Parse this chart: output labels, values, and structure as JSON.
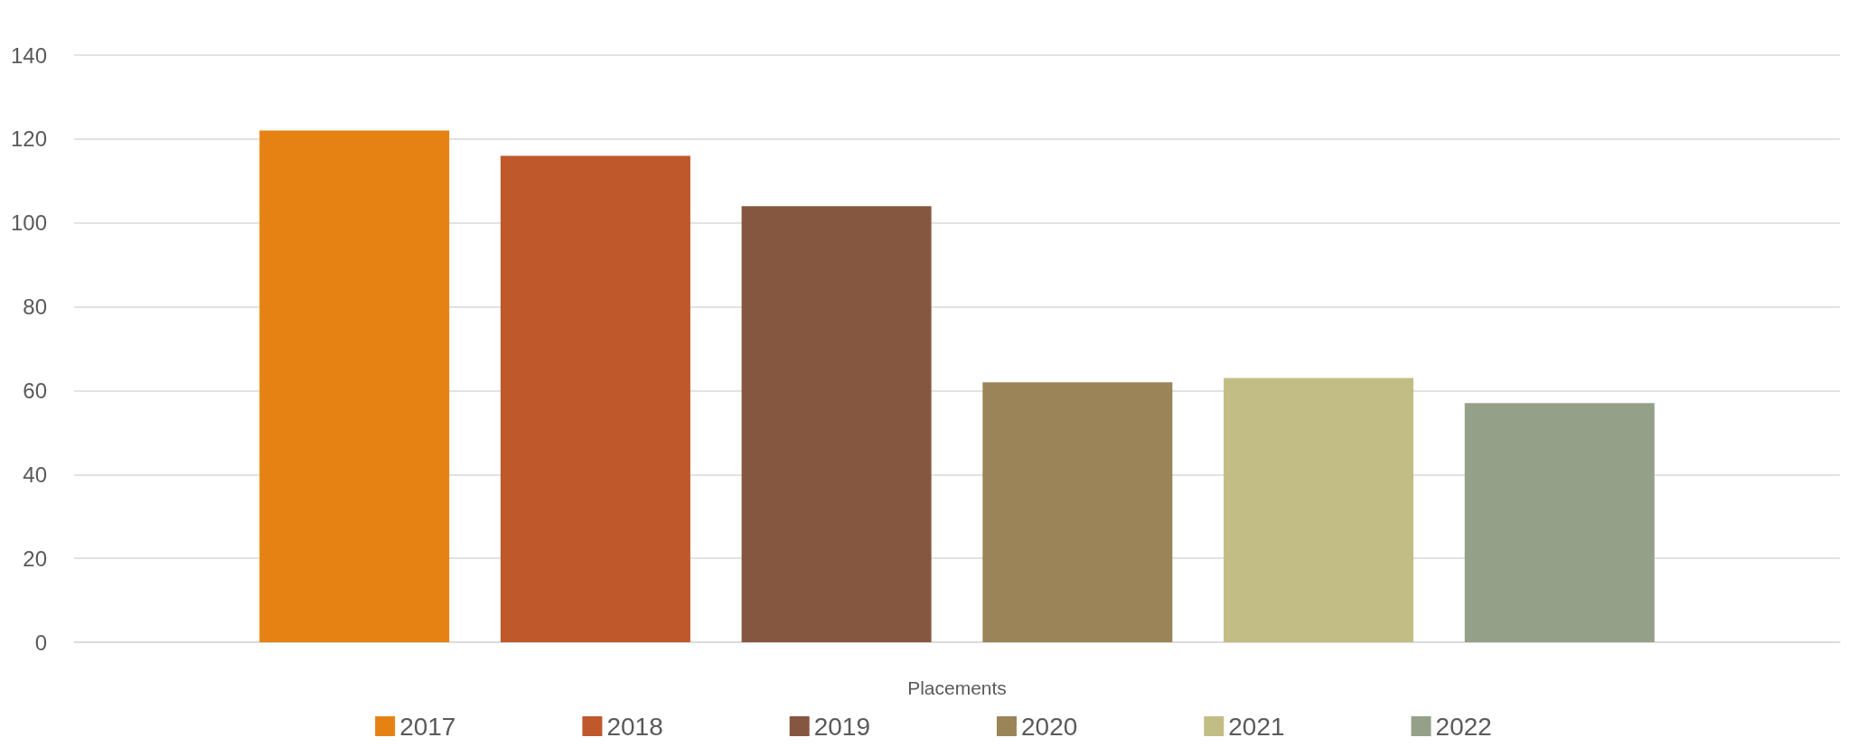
{
  "chart_data": {
    "type": "bar",
    "xlabel": "Placements",
    "categories": [
      null
    ],
    "series": [
      {
        "name": "2017",
        "color": "#e58213",
        "values": [
          122
        ]
      },
      {
        "name": "2018",
        "color": "#bf582b",
        "values": [
          116
        ]
      },
      {
        "name": "2019",
        "color": "#855741",
        "values": [
          104
        ]
      },
      {
        "name": "2020",
        "color": "#9b8458",
        "values": [
          62
        ]
      },
      {
        "name": "2021",
        "color": "#c2bd84",
        "values": [
          63
        ]
      },
      {
        "name": "2022",
        "color": "#95a088",
        "values": [
          57
        ]
      }
    ],
    "ylim": [
      0,
      140
    ],
    "yticks": [
      0,
      20,
      40,
      60,
      80,
      100,
      120,
      140
    ],
    "grid": true,
    "legend": "bottom"
  }
}
